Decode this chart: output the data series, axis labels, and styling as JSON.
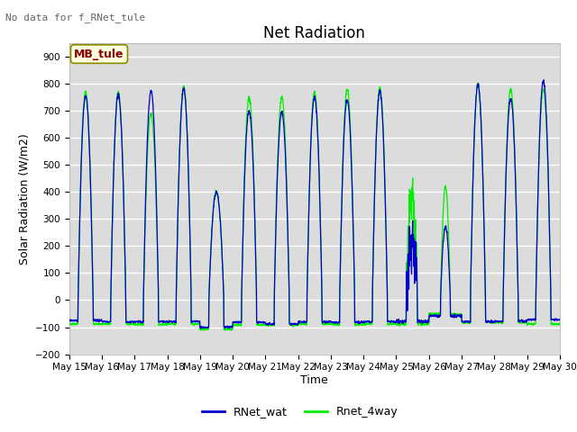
{
  "title": "Net Radiation",
  "xlabel": "Time",
  "ylabel": "Solar Radiation (W/m2)",
  "no_data_text": "No data for f_RNet_tule",
  "legend_label1": "RNet_wat",
  "legend_label2": "Rnet_4way",
  "legend_box_label": "MB_tule",
  "ylim": [
    -200,
    950
  ],
  "yticks": [
    -200,
    -100,
    0,
    100,
    200,
    300,
    400,
    500,
    600,
    700,
    800,
    900
  ],
  "x_tick_labels": [
    "May 15",
    "May 16",
    "May 17",
    "May 18",
    "May 19",
    "May 20",
    "May 21",
    "May 22",
    "May 23",
    "May 24",
    "May 25",
    "May 26",
    "May 27",
    "May 28",
    "May 29",
    "May 30"
  ],
  "color_blue": "#0000CD",
  "color_green": "#00EE00",
  "bg_color": "#DCDCDC",
  "title_fontsize": 12,
  "axis_label_fontsize": 9,
  "tick_fontsize": 7.5
}
